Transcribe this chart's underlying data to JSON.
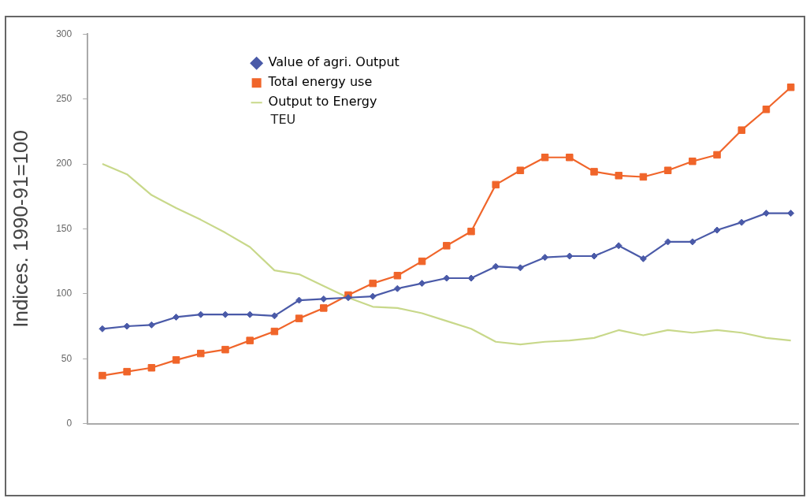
{
  "chart_data": {
    "type": "line",
    "ylabel": "Indices. 1990-91=100",
    "categories": [
      null,
      null,
      null,
      null,
      null,
      null,
      null,
      null,
      null,
      null,
      null,
      null,
      null,
      null,
      null,
      null,
      null,
      null,
      null,
      null,
      null,
      null,
      null,
      null,
      null,
      null,
      null,
      null,
      null
    ],
    "ylim": [
      0,
      300
    ],
    "yticks": [
      0,
      50,
      100,
      150,
      200,
      250,
      300
    ],
    "grid": false,
    "legend": "top left",
    "series": [
      {
        "name": "Value of agri. Output",
        "color": "#4a5aa8",
        "marker": "diamond",
        "values": [
          73,
          75,
          76,
          82,
          84,
          84,
          84,
          83,
          95,
          96,
          97,
          98,
          104,
          108,
          112,
          112,
          121,
          120,
          128,
          129,
          129,
          137,
          127,
          140,
          140,
          149,
          155,
          162,
          162
        ]
      },
      {
        "name": "Total energy use",
        "color": "#f0652a",
        "marker": "square",
        "values": [
          37,
          40,
          43,
          49,
          54,
          57,
          64,
          71,
          81,
          89,
          99,
          108,
          114,
          125,
          137,
          148,
          184,
          195,
          205,
          205,
          194,
          191,
          190,
          195,
          202,
          207,
          226,
          242,
          259
        ]
      },
      {
        "name": "Output to Energy",
        "color": "#c8d88a",
        "marker": "none",
        "values": [
          200,
          192,
          176,
          166,
          157,
          147,
          136,
          118,
          115,
          106,
          97,
          90,
          89,
          85,
          79,
          73,
          63,
          61,
          63,
          64,
          66,
          72,
          68,
          72,
          70,
          72,
          70,
          66,
          64
        ]
      }
    ],
    "annotations": [
      "TEU"
    ]
  }
}
